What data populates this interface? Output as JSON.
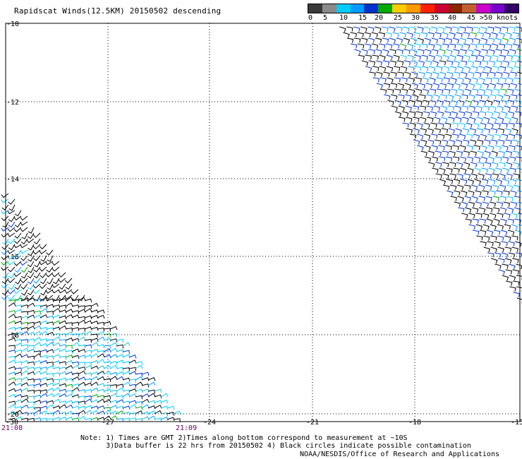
{
  "title": "Rapidscat Winds(12.5KM) 20150502 descending",
  "legend": {
    "labels": [
      "0",
      "5",
      "10",
      "15",
      "20",
      "25",
      "30",
      "35",
      "40",
      "45",
      ">50 knots"
    ],
    "colors": [
      "#3a3a3a",
      "#8a8a8a",
      "#00ccff",
      "#0099ff",
      "#0033cc",
      "#00aa00",
      "#ffcc00",
      "#ff9900",
      "#ff2200",
      "#cc0033",
      "#8b2500",
      "#c06030",
      "#cc00cc",
      "#7a00cc",
      "#330066"
    ]
  },
  "lat_labels": [
    "-10",
    "-12",
    "-14",
    "-16",
    "-18",
    "-20"
  ],
  "lon_labels": [
    "-30",
    "-27",
    "-24",
    "-21",
    "-18",
    "-15"
  ],
  "time_labels": [
    "21:08",
    "21:09"
  ],
  "notes": "Note: 1) Times are GMT 2)Times along bottom correspond to measurement at ~10S\n      3)Data buffer is 22 hrs from 20150502 4) Black circles indicate possible contamination",
  "credit": "NOAA/NESDIS/Office of Research and Applications",
  "barb_palette": [
    "#000000",
    "#0033cc",
    "#0099ff",
    "#00ccff",
    "#22bbcc",
    "#00aa00"
  ]
}
